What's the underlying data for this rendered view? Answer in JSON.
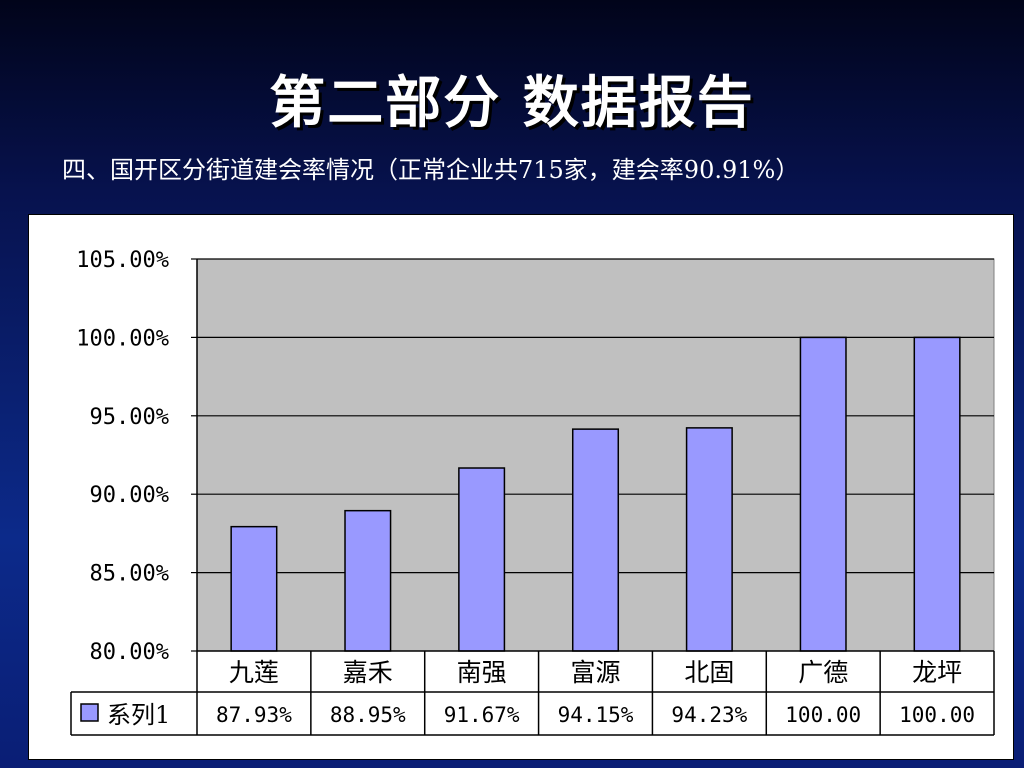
{
  "slide": {
    "title": "第二部分  数据报告",
    "subtitle": "四、国开区分街道建会率情况（正常企业共715家，建会率90.91%）"
  },
  "colors": {
    "bar_fill": "#9999ff",
    "plot_background": "#c0c0c0"
  },
  "chart_data": {
    "type": "bar",
    "categories": [
      "九莲",
      "嘉禾",
      "南强",
      "富源",
      "北固",
      "广德",
      "龙坪"
    ],
    "series": [
      {
        "name": "系列1",
        "values": [
          87.93,
          88.95,
          91.67,
          94.15,
          94.23,
          100.0,
          100.0
        ],
        "labels": [
          "87.93%",
          "88.95%",
          "91.67%",
          "94.15%",
          "94.23%",
          "100.00",
          "100.00"
        ]
      }
    ],
    "ylim": [
      80,
      105
    ],
    "yticks": [
      "80.00%",
      "85.00%",
      "90.00%",
      "95.00%",
      "100.00%",
      "105.00%"
    ],
    "ytick_values": [
      80,
      85,
      90,
      95,
      100,
      105
    ],
    "grid": true,
    "legend": "data-table-left"
  }
}
